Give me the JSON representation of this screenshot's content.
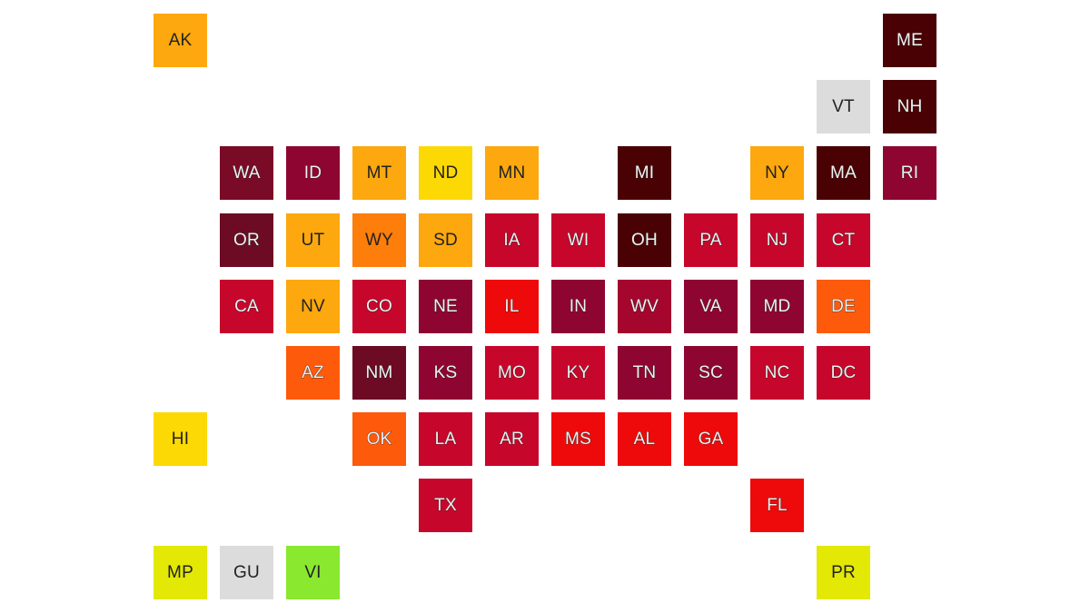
{
  "map": {
    "type": "us-state-tile-grid",
    "tiles": [
      {
        "abbr": "AK",
        "col": 0,
        "row": 0,
        "color": "#fda80f"
      },
      {
        "abbr": "ME",
        "col": 11,
        "row": 0,
        "color": "#4a0103"
      },
      {
        "abbr": "VT",
        "col": 10,
        "row": 1,
        "color": "#dcdcdc"
      },
      {
        "abbr": "NH",
        "col": 11,
        "row": 1,
        "color": "#4a0103"
      },
      {
        "abbr": "WA",
        "col": 1,
        "row": 2,
        "color": "#7a0b27"
      },
      {
        "abbr": "ID",
        "col": 2,
        "row": 2,
        "color": "#8f0532"
      },
      {
        "abbr": "MT",
        "col": 3,
        "row": 2,
        "color": "#fda80f"
      },
      {
        "abbr": "ND",
        "col": 4,
        "row": 2,
        "color": "#fcd904"
      },
      {
        "abbr": "MN",
        "col": 5,
        "row": 2,
        "color": "#fda80f"
      },
      {
        "abbr": "MI",
        "col": 7,
        "row": 2,
        "color": "#4a0103"
      },
      {
        "abbr": "NY",
        "col": 9,
        "row": 2,
        "color": "#fda80f"
      },
      {
        "abbr": "MA",
        "col": 10,
        "row": 2,
        "color": "#4a0103"
      },
      {
        "abbr": "RI",
        "col": 11,
        "row": 2,
        "color": "#8f0532"
      },
      {
        "abbr": "OR",
        "col": 1,
        "row": 3,
        "color": "#6d0b24"
      },
      {
        "abbr": "UT",
        "col": 2,
        "row": 3,
        "color": "#fda80f"
      },
      {
        "abbr": "WY",
        "col": 3,
        "row": 3,
        "color": "#fd7e0a"
      },
      {
        "abbr": "SD",
        "col": 4,
        "row": 3,
        "color": "#fda80f"
      },
      {
        "abbr": "IA",
        "col": 5,
        "row": 3,
        "color": "#c7062b"
      },
      {
        "abbr": "WI",
        "col": 6,
        "row": 3,
        "color": "#c7062b"
      },
      {
        "abbr": "OH",
        "col": 7,
        "row": 3,
        "color": "#4a0103"
      },
      {
        "abbr": "PA",
        "col": 8,
        "row": 3,
        "color": "#c7062b"
      },
      {
        "abbr": "NJ",
        "col": 9,
        "row": 3,
        "color": "#c7062b"
      },
      {
        "abbr": "CT",
        "col": 10,
        "row": 3,
        "color": "#c7062b"
      },
      {
        "abbr": "CA",
        "col": 1,
        "row": 4,
        "color": "#c7062b"
      },
      {
        "abbr": "NV",
        "col": 2,
        "row": 4,
        "color": "#fda80f"
      },
      {
        "abbr": "CO",
        "col": 3,
        "row": 4,
        "color": "#c7062b"
      },
      {
        "abbr": "NE",
        "col": 4,
        "row": 4,
        "color": "#8f0532"
      },
      {
        "abbr": "IL",
        "col": 5,
        "row": 4,
        "color": "#ee0a0a"
      },
      {
        "abbr": "IN",
        "col": 6,
        "row": 4,
        "color": "#8f0532"
      },
      {
        "abbr": "WV",
        "col": 7,
        "row": 4,
        "color": "#a5062e"
      },
      {
        "abbr": "VA",
        "col": 8,
        "row": 4,
        "color": "#8f0532"
      },
      {
        "abbr": "MD",
        "col": 9,
        "row": 4,
        "color": "#8f0532"
      },
      {
        "abbr": "DE",
        "col": 10,
        "row": 4,
        "color": "#fd5a0c"
      },
      {
        "abbr": "AZ",
        "col": 2,
        "row": 5,
        "color": "#fd5a0c"
      },
      {
        "abbr": "NM",
        "col": 3,
        "row": 5,
        "color": "#6d0b24"
      },
      {
        "abbr": "KS",
        "col": 4,
        "row": 5,
        "color": "#8f0532"
      },
      {
        "abbr": "MO",
        "col": 5,
        "row": 5,
        "color": "#c7062b"
      },
      {
        "abbr": "KY",
        "col": 6,
        "row": 5,
        "color": "#c7062b"
      },
      {
        "abbr": "TN",
        "col": 7,
        "row": 5,
        "color": "#8f0532"
      },
      {
        "abbr": "SC",
        "col": 8,
        "row": 5,
        "color": "#8f0532"
      },
      {
        "abbr": "NC",
        "col": 9,
        "row": 5,
        "color": "#c7062b"
      },
      {
        "abbr": "DC",
        "col": 10,
        "row": 5,
        "color": "#c7062b"
      },
      {
        "abbr": "HI",
        "col": 0,
        "row": 6,
        "color": "#fcd904"
      },
      {
        "abbr": "OK",
        "col": 3,
        "row": 6,
        "color": "#fd5a0c"
      },
      {
        "abbr": "LA",
        "col": 4,
        "row": 6,
        "color": "#c7062b"
      },
      {
        "abbr": "AR",
        "col": 5,
        "row": 6,
        "color": "#c7062b"
      },
      {
        "abbr": "MS",
        "col": 6,
        "row": 6,
        "color": "#ee0a0a"
      },
      {
        "abbr": "AL",
        "col": 7,
        "row": 6,
        "color": "#ee0a0a"
      },
      {
        "abbr": "GA",
        "col": 8,
        "row": 6,
        "color": "#ee0a0a"
      },
      {
        "abbr": "TX",
        "col": 4,
        "row": 7,
        "color": "#c7062b"
      },
      {
        "abbr": "FL",
        "col": 9,
        "row": 7,
        "color": "#ee0a0a"
      },
      {
        "abbr": "MP",
        "col": 0,
        "row": 8,
        "color": "#e3e805"
      },
      {
        "abbr": "GU",
        "col": 1,
        "row": 8,
        "color": "#dcdcdc"
      },
      {
        "abbr": "VI",
        "col": 2,
        "row": 8,
        "color": "#8ae82f"
      },
      {
        "abbr": "PR",
        "col": 10,
        "row": 8,
        "color": "#e3e805"
      }
    ]
  }
}
